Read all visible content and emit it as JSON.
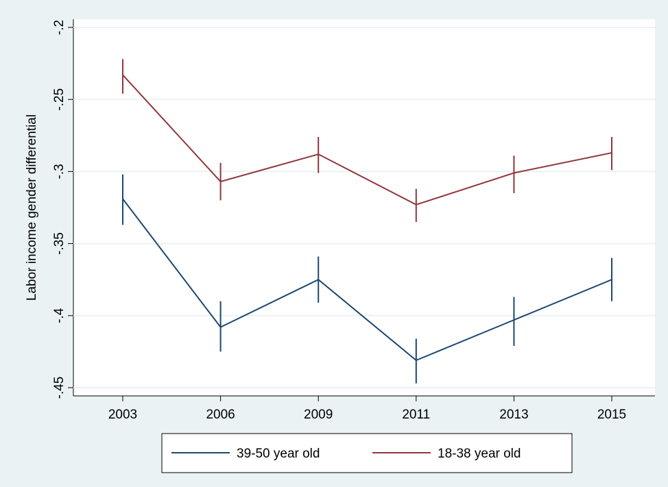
{
  "chart_data": {
    "type": "line",
    "y_label": "Labor income gender differential",
    "categories": [
      "2003",
      "2006",
      "2009",
      "2011",
      "2013",
      "2015"
    ],
    "series": [
      {
        "name": "39-50 year old",
        "color": "#1a476f",
        "values": [
          -0.319,
          -0.408,
          -0.375,
          -0.431,
          -0.403,
          -0.375
        ],
        "ci_low": [
          -0.337,
          -0.425,
          -0.391,
          -0.447,
          -0.421,
          -0.39
        ],
        "ci_high": [
          -0.302,
          -0.39,
          -0.359,
          -0.416,
          -0.387,
          -0.36
        ]
      },
      {
        "name": "18-38 year old",
        "color": "#90353b",
        "values": [
          -0.233,
          -0.307,
          -0.288,
          -0.323,
          -0.301,
          -0.287
        ],
        "ci_low": [
          -0.246,
          -0.32,
          -0.301,
          -0.335,
          -0.315,
          -0.299
        ],
        "ci_high": [
          -0.222,
          -0.294,
          -0.276,
          -0.312,
          -0.289,
          -0.276
        ]
      }
    ],
    "ylim": [
      -0.4557,
      -0.1943
    ],
    "yticks": [
      {
        "value": -0.2,
        "label": "-.2"
      },
      {
        "value": -0.25,
        "label": "-.25"
      },
      {
        "value": -0.3,
        "label": "-.3"
      },
      {
        "value": -0.35,
        "label": "-.35"
      },
      {
        "value": -0.4,
        "label": "-.4"
      },
      {
        "value": -0.45,
        "label": "-.45"
      }
    ],
    "grid": true,
    "legend": "bottom"
  }
}
